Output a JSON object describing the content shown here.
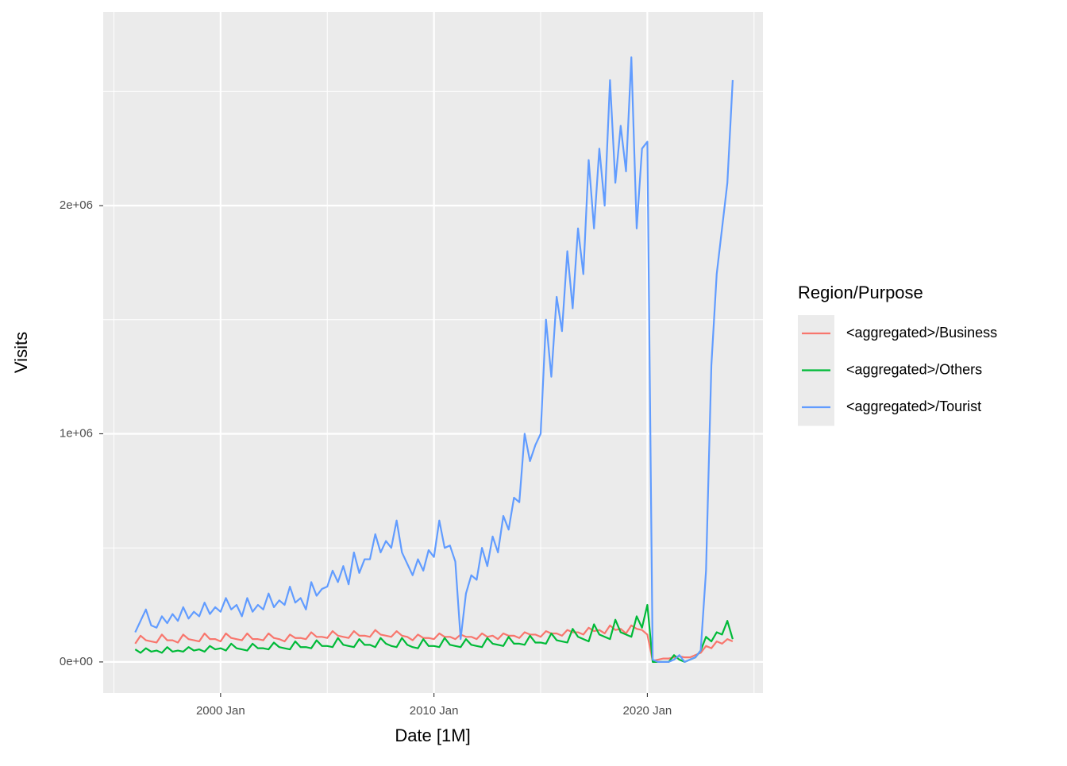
{
  "chart_data": {
    "type": "line",
    "x_label": "Date [1M]",
    "y_label": "Visits",
    "legend_title": "Region/Purpose",
    "legend": "right",
    "grid": true,
    "x": [
      "1996 Jan",
      "1996 Apr",
      "1996 Jul",
      "1996 Oct",
      "1997 Jan",
      "1997 Apr",
      "1997 Jul",
      "1997 Oct",
      "1998 Jan",
      "1998 Apr",
      "1998 Jul",
      "1998 Oct",
      "1999 Jan",
      "1999 Apr",
      "1999 Jul",
      "1999 Oct",
      "2000 Jan",
      "2000 Apr",
      "2000 Jul",
      "2000 Oct",
      "2001 Jan",
      "2001 Apr",
      "2001 Jul",
      "2001 Oct",
      "2002 Jan",
      "2002 Apr",
      "2002 Jul",
      "2002 Oct",
      "2003 Jan",
      "2003 Apr",
      "2003 Jul",
      "2003 Oct",
      "2004 Jan",
      "2004 Apr",
      "2004 Jul",
      "2004 Oct",
      "2005 Jan",
      "2005 Apr",
      "2005 Jul",
      "2005 Oct",
      "2006 Jan",
      "2006 Apr",
      "2006 Jul",
      "2006 Oct",
      "2007 Jan",
      "2007 Apr",
      "2007 Jul",
      "2007 Oct",
      "2008 Jan",
      "2008 Apr",
      "2008 Jul",
      "2008 Oct",
      "2009 Jan",
      "2009 Apr",
      "2009 Jul",
      "2009 Oct",
      "2010 Jan",
      "2010 Apr",
      "2010 Jul",
      "2010 Oct",
      "2011 Jan",
      "2011 Apr",
      "2011 Jul",
      "2011 Oct",
      "2012 Jan",
      "2012 Apr",
      "2012 Jul",
      "2012 Oct",
      "2013 Jan",
      "2013 Apr",
      "2013 Jul",
      "2013 Oct",
      "2014 Jan",
      "2014 Apr",
      "2014 Jul",
      "2014 Oct",
      "2015 Jan",
      "2015 Apr",
      "2015 Jul",
      "2015 Oct",
      "2016 Jan",
      "2016 Apr",
      "2016 Jul",
      "2016 Oct",
      "2017 Jan",
      "2017 Apr",
      "2017 Jul",
      "2017 Oct",
      "2018 Jan",
      "2018 Apr",
      "2018 Jul",
      "2018 Oct",
      "2019 Jan",
      "2019 Apr",
      "2019 Jul",
      "2019 Oct",
      "2020 Jan",
      "2020 Apr",
      "2020 Jul",
      "2020 Oct",
      "2021 Jan",
      "2021 Apr",
      "2021 Jul",
      "2021 Oct",
      "2022 Jan",
      "2022 Apr",
      "2022 Jul",
      "2022 Oct",
      "2023 Jan",
      "2023 Apr",
      "2023 Jul",
      "2023 Oct",
      "2024 Jan"
    ],
    "xlim": [
      "1994 Jul",
      "2025 Jun"
    ],
    "xticks": [
      "2000 Jan",
      "2010 Jan",
      "2020 Jan"
    ],
    "ylim": [
      -136000,
      2849000
    ],
    "yticks": [
      {
        "value": 0,
        "label": "0e+00"
      },
      {
        "value": 1000000,
        "label": "1e+06"
      },
      {
        "value": 2000000,
        "label": "2e+06"
      }
    ],
    "series": [
      {
        "name": "<aggregated>/Business",
        "color": "#f8766d",
        "values": [
          80000,
          115000,
          95000,
          90000,
          85000,
          120000,
          95000,
          95000,
          85000,
          120000,
          100000,
          95000,
          90000,
          125000,
          100000,
          100000,
          90000,
          125000,
          105000,
          100000,
          95000,
          125000,
          100000,
          100000,
          95000,
          125000,
          105000,
          100000,
          90000,
          120000,
          105000,
          105000,
          100000,
          130000,
          110000,
          110000,
          105000,
          135000,
          115000,
          110000,
          105000,
          135000,
          115000,
          115000,
          110000,
          140000,
          120000,
          115000,
          110000,
          135000,
          115000,
          110000,
          95000,
          120000,
          105000,
          105000,
          100000,
          125000,
          110000,
          110000,
          100000,
          120000,
          110000,
          110000,
          100000,
          125000,
          110000,
          115000,
          100000,
          125000,
          115000,
          115000,
          105000,
          130000,
          120000,
          120000,
          110000,
          135000,
          125000,
          125000,
          115000,
          140000,
          130000,
          130000,
          120000,
          150000,
          135000,
          140000,
          125000,
          160000,
          140000,
          145000,
          125000,
          160000,
          145000,
          140000,
          120000,
          5000,
          10000,
          15000,
          15000,
          20000,
          25000,
          20000,
          20000,
          30000,
          40000,
          70000,
          60000,
          90000,
          80000,
          100000,
          90000
        ]
      },
      {
        "name": "<aggregated>/Others",
        "color": "#00ba38",
        "values": [
          55000,
          40000,
          60000,
          45000,
          50000,
          40000,
          65000,
          45000,
          50000,
          45000,
          65000,
          50000,
          55000,
          45000,
          70000,
          55000,
          60000,
          50000,
          80000,
          60000,
          55000,
          50000,
          80000,
          60000,
          60000,
          55000,
          85000,
          65000,
          60000,
          55000,
          90000,
          65000,
          65000,
          60000,
          95000,
          70000,
          70000,
          65000,
          105000,
          75000,
          70000,
          65000,
          100000,
          75000,
          75000,
          65000,
          105000,
          80000,
          70000,
          65000,
          105000,
          75000,
          65000,
          60000,
          100000,
          70000,
          70000,
          65000,
          105000,
          75000,
          70000,
          65000,
          100000,
          75000,
          70000,
          65000,
          105000,
          80000,
          75000,
          70000,
          110000,
          80000,
          80000,
          75000,
          115000,
          85000,
          85000,
          80000,
          125000,
          95000,
          90000,
          85000,
          145000,
          110000,
          100000,
          90000,
          165000,
          120000,
          110000,
          100000,
          185000,
          130000,
          120000,
          110000,
          200000,
          150000,
          250000,
          0,
          0,
          0,
          0,
          30000,
          10000,
          0,
          10000,
          20000,
          50000,
          110000,
          90000,
          130000,
          120000,
          180000,
          100000
        ]
      },
      {
        "name": "<aggregated>/Tourist",
        "color": "#619cff",
        "values": [
          130000,
          180000,
          230000,
          160000,
          150000,
          200000,
          170000,
          210000,
          180000,
          240000,
          190000,
          220000,
          200000,
          260000,
          210000,
          240000,
          220000,
          280000,
          230000,
          250000,
          200000,
          280000,
          220000,
          250000,
          230000,
          300000,
          240000,
          270000,
          250000,
          330000,
          260000,
          280000,
          230000,
          350000,
          290000,
          320000,
          330000,
          400000,
          350000,
          420000,
          340000,
          480000,
          390000,
          450000,
          450000,
          560000,
          480000,
          530000,
          500000,
          620000,
          480000,
          430000,
          380000,
          450000,
          400000,
          490000,
          460000,
          620000,
          500000,
          510000,
          440000,
          100000,
          300000,
          380000,
          360000,
          500000,
          420000,
          550000,
          480000,
          640000,
          580000,
          720000,
          700000,
          1000000,
          880000,
          950000,
          1000000,
          1500000,
          1250000,
          1600000,
          1450000,
          1800000,
          1550000,
          1900000,
          1700000,
          2200000,
          1900000,
          2250000,
          2000000,
          2550000,
          2100000,
          2350000,
          2150000,
          2650000,
          1900000,
          2250000,
          2280000,
          10000,
          0,
          0,
          0,
          10000,
          30000,
          0,
          10000,
          20000,
          50000,
          400000,
          1300000,
          1700000,
          1900000,
          2100000,
          2550000
        ]
      }
    ]
  }
}
